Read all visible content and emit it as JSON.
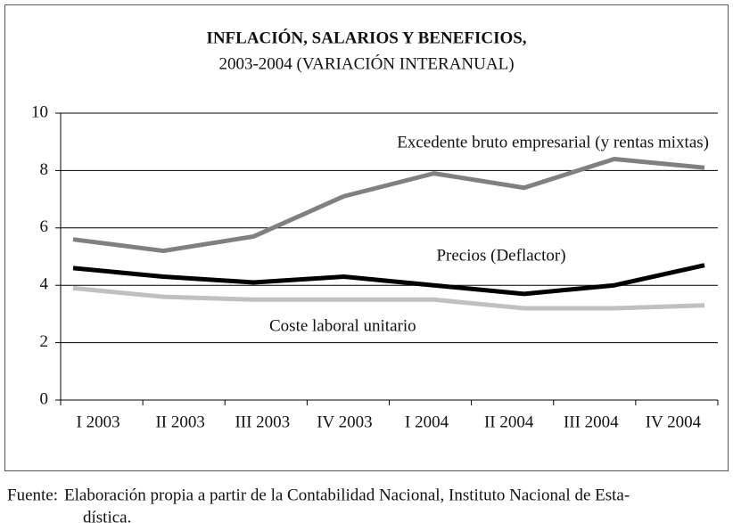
{
  "chart_data": {
    "type": "line",
    "title": "INFLACIÓN, SALARIOS Y BENEFICIOS,",
    "subtitle": "2003-2004 (VARIACIÓN INTERANUAL)",
    "categories": [
      "I 2003",
      "II 2003",
      "III 2003",
      "IV 2003",
      "I 2004",
      "II 2004",
      "III 2004",
      "IV 2004"
    ],
    "series": [
      {
        "name": "Excedente bruto empresarial (y rentas mixtas)",
        "color": "#808080",
        "values": [
          5.6,
          5.2,
          5.7,
          7.1,
          7.9,
          7.4,
          8.4,
          8.1
        ]
      },
      {
        "name": "Precios (Deflactor)",
        "color": "#000000",
        "values": [
          4.6,
          4.3,
          4.1,
          4.3,
          4.0,
          3.7,
          4.0,
          4.7
        ]
      },
      {
        "name": "Coste laboral unitario",
        "color": "#c0c0c0",
        "values": [
          3.9,
          3.6,
          3.5,
          3.5,
          3.5,
          3.2,
          3.2,
          3.3
        ]
      }
    ],
    "ylim": [
      0,
      10
    ],
    "yticks": [
      0,
      2,
      4,
      6,
      8,
      10
    ],
    "grid": true
  },
  "source": {
    "label": "Fuente:",
    "lines": [
      "Elaboración propia a partir de la Contabilidad Nacional, Instituto Nacional de Esta-",
      "dística."
    ]
  }
}
